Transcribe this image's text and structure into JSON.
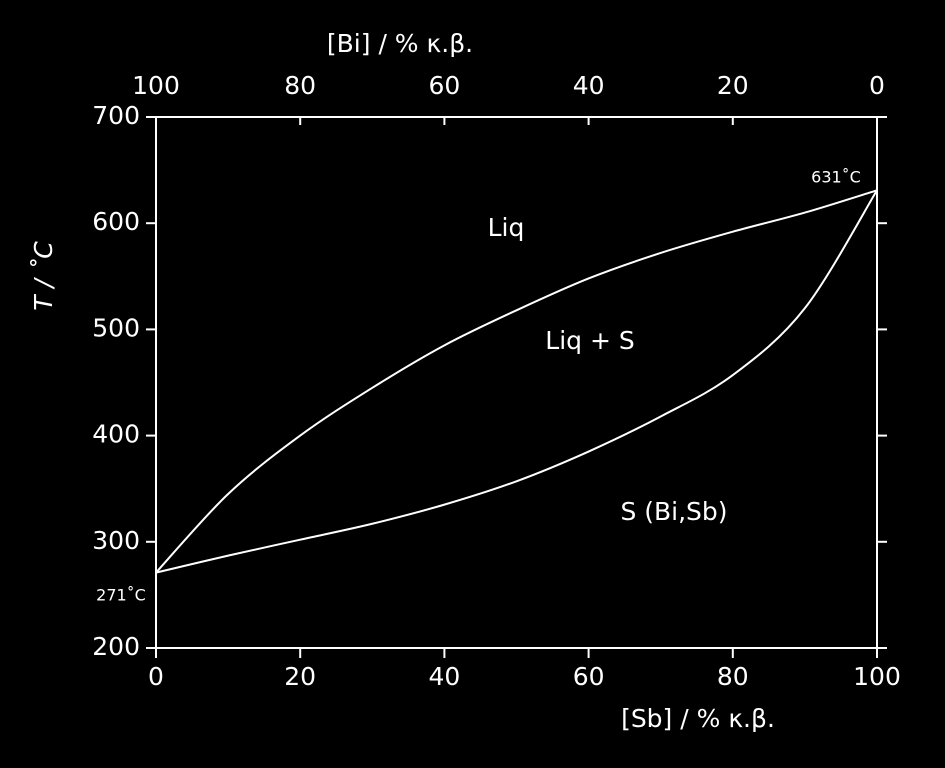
{
  "chart_data": {
    "type": "line",
    "x_label": "[Sb] / % κ.β.",
    "x2_label": "[Bi] / % κ.β.",
    "y_label": "T / ˚C",
    "x": [
      0,
      10,
      20,
      30,
      40,
      50,
      60,
      70,
      80,
      90,
      100
    ],
    "series": [
      {
        "color": "#ffffff",
        "values": [
          271,
          345,
          400,
          445,
          485,
          518,
          548,
          572,
          592,
          610,
          631
        ]
      },
      {
        "color": "#ffffff",
        "values": [
          271,
          287,
          302,
          317,
          335,
          357,
          385,
          418,
          457,
          520,
          631
        ]
      }
    ],
    "xlim": [
      0,
      100
    ],
    "xticks": [
      0,
      20,
      40,
      60,
      80,
      100
    ],
    "x2lim": [
      100,
      0
    ],
    "x2ticks": [
      100,
      80,
      60,
      40,
      20,
      0
    ],
    "ylim": [
      200,
      700
    ],
    "yticks": [
      200,
      300,
      400,
      500,
      600,
      700
    ],
    "annotations": [
      "Liq",
      "Liq + S",
      "S (Bi,Sb)",
      "631˚C",
      "271˚C"
    ]
  }
}
